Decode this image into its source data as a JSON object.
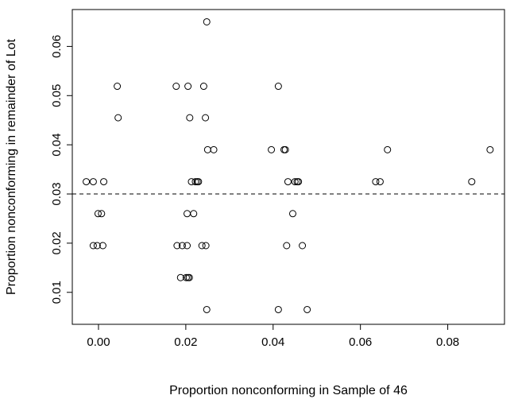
{
  "chart_data": {
    "type": "scatter",
    "title": "",
    "xlabel": "Proportion nonconforming in Sample of 46",
    "ylabel": "Proportion nonconforming in remainder of Lot",
    "xlim": [
      -0.006,
      0.093
    ],
    "ylim": [
      0.0035,
      0.0675
    ],
    "xticks": [
      0.0,
      0.02,
      0.04,
      0.06,
      0.08
    ],
    "xtick_labels": [
      "0.00",
      "0.02",
      "0.04",
      "0.06",
      "0.08"
    ],
    "yticks": [
      0.01,
      0.02,
      0.03,
      0.04,
      0.05,
      0.06
    ],
    "ytick_labels": [
      "0.01",
      "0.02",
      "0.03",
      "0.04",
      "0.05",
      "0.06"
    ],
    "reference_line": {
      "y": 0.03,
      "style": "dashed"
    },
    "grid": false,
    "points": [
      {
        "x": 0.0248,
        "y": 0.065
      },
      {
        "x": 0.0043,
        "y": 0.0519
      },
      {
        "x": 0.0178,
        "y": 0.0519
      },
      {
        "x": 0.0205,
        "y": 0.0519
      },
      {
        "x": 0.0241,
        "y": 0.0519
      },
      {
        "x": 0.0412,
        "y": 0.0519
      },
      {
        "x": 0.0045,
        "y": 0.0455
      },
      {
        "x": 0.0209,
        "y": 0.0455
      },
      {
        "x": 0.0245,
        "y": 0.0455
      },
      {
        "x": 0.025,
        "y": 0.039
      },
      {
        "x": 0.0264,
        "y": 0.039
      },
      {
        "x": 0.0396,
        "y": 0.039
      },
      {
        "x": 0.0425,
        "y": 0.039
      },
      {
        "x": 0.0428,
        "y": 0.039
      },
      {
        "x": 0.0662,
        "y": 0.039
      },
      {
        "x": 0.0897,
        "y": 0.039
      },
      {
        "x": -0.0028,
        "y": 0.0325
      },
      {
        "x": -0.0012,
        "y": 0.0325
      },
      {
        "x": 0.0012,
        "y": 0.0325
      },
      {
        "x": 0.0213,
        "y": 0.0325
      },
      {
        "x": 0.0222,
        "y": 0.0325
      },
      {
        "x": 0.0226,
        "y": 0.0325
      },
      {
        "x": 0.0229,
        "y": 0.0325
      },
      {
        "x": 0.0434,
        "y": 0.0325
      },
      {
        "x": 0.045,
        "y": 0.0325
      },
      {
        "x": 0.0455,
        "y": 0.0325
      },
      {
        "x": 0.0458,
        "y": 0.0325
      },
      {
        "x": 0.0635,
        "y": 0.0325
      },
      {
        "x": 0.0645,
        "y": 0.0325
      },
      {
        "x": 0.0855,
        "y": 0.0325
      },
      {
        "x": -0.0001,
        "y": 0.026
      },
      {
        "x": 0.0007,
        "y": 0.026
      },
      {
        "x": 0.0203,
        "y": 0.026
      },
      {
        "x": 0.0218,
        "y": 0.026
      },
      {
        "x": 0.0445,
        "y": 0.026
      },
      {
        "x": -0.0012,
        "y": 0.0195
      },
      {
        "x": -0.0003,
        "y": 0.0195
      },
      {
        "x": 0.001,
        "y": 0.0195
      },
      {
        "x": 0.018,
        "y": 0.0195
      },
      {
        "x": 0.0192,
        "y": 0.0195
      },
      {
        "x": 0.0203,
        "y": 0.0195
      },
      {
        "x": 0.0237,
        "y": 0.0195
      },
      {
        "x": 0.0246,
        "y": 0.0195
      },
      {
        "x": 0.0431,
        "y": 0.0195
      },
      {
        "x": 0.0467,
        "y": 0.0195
      },
      {
        "x": 0.0188,
        "y": 0.013
      },
      {
        "x": 0.0201,
        "y": 0.013
      },
      {
        "x": 0.0205,
        "y": 0.013
      },
      {
        "x": 0.0208,
        "y": 0.013
      },
      {
        "x": 0.0248,
        "y": 0.0065
      },
      {
        "x": 0.0412,
        "y": 0.0065
      },
      {
        "x": 0.0478,
        "y": 0.0065
      }
    ]
  }
}
